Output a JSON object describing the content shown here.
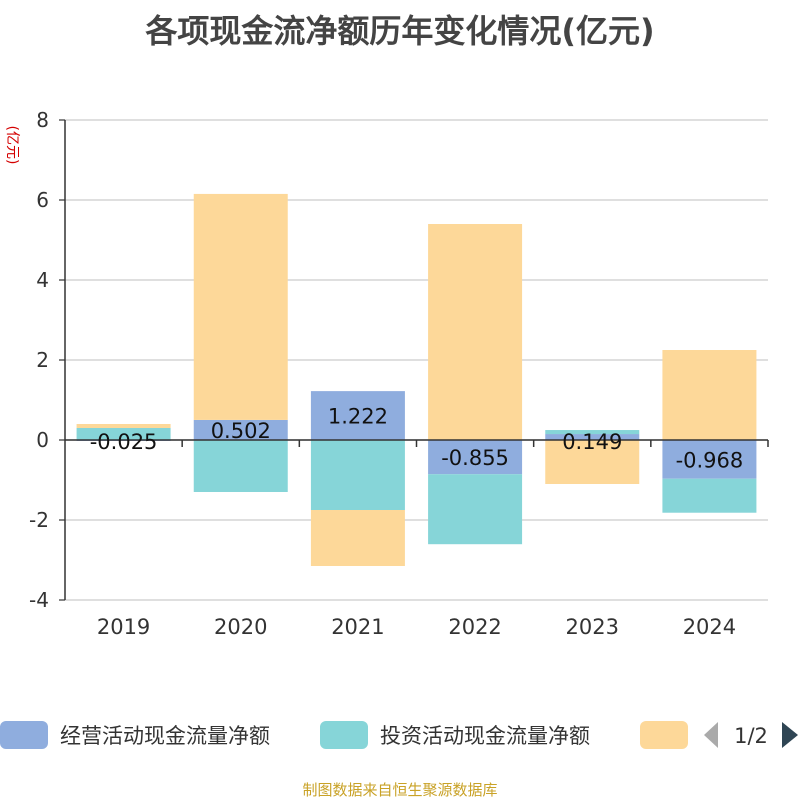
{
  "title": "各项现金流净额历年变化情况(亿元)",
  "source": "制图数据来自恒生聚源数据库",
  "legend_page": "1/2",
  "chart_data": {
    "type": "bar",
    "stacked": true,
    "title": "各项现金流净额历年变化情况(亿元)",
    "ylabel": "(亿元)",
    "xlabel": "",
    "ylim": [
      -4,
      8
    ],
    "yticks": [
      -4,
      -2,
      0,
      2,
      4,
      6,
      8
    ],
    "grid": true,
    "legend_position": "bottom",
    "categories": [
      "2019",
      "2020",
      "2021",
      "2022",
      "2023",
      "2024"
    ],
    "series": [
      {
        "name": "经营活动现金流量净额",
        "color": "#8fadde",
        "values": [
          -0.025,
          0.502,
          1.222,
          -0.855,
          0.149,
          -0.968
        ],
        "labels": [
          "-0.025",
          "0.502",
          "1.222",
          "-0.855",
          "0.149",
          "-0.968"
        ]
      },
      {
        "name": "投资活动现金流量净额",
        "color": "#86d5d8",
        "values": [
          0.3,
          -1.3,
          -1.75,
          -1.75,
          0.1,
          -0.85
        ]
      },
      {
        "name": "",
        "color": "#fdd899",
        "values": [
          0.1,
          5.65,
          -1.4,
          5.4,
          -1.1,
          2.25
        ]
      }
    ]
  }
}
